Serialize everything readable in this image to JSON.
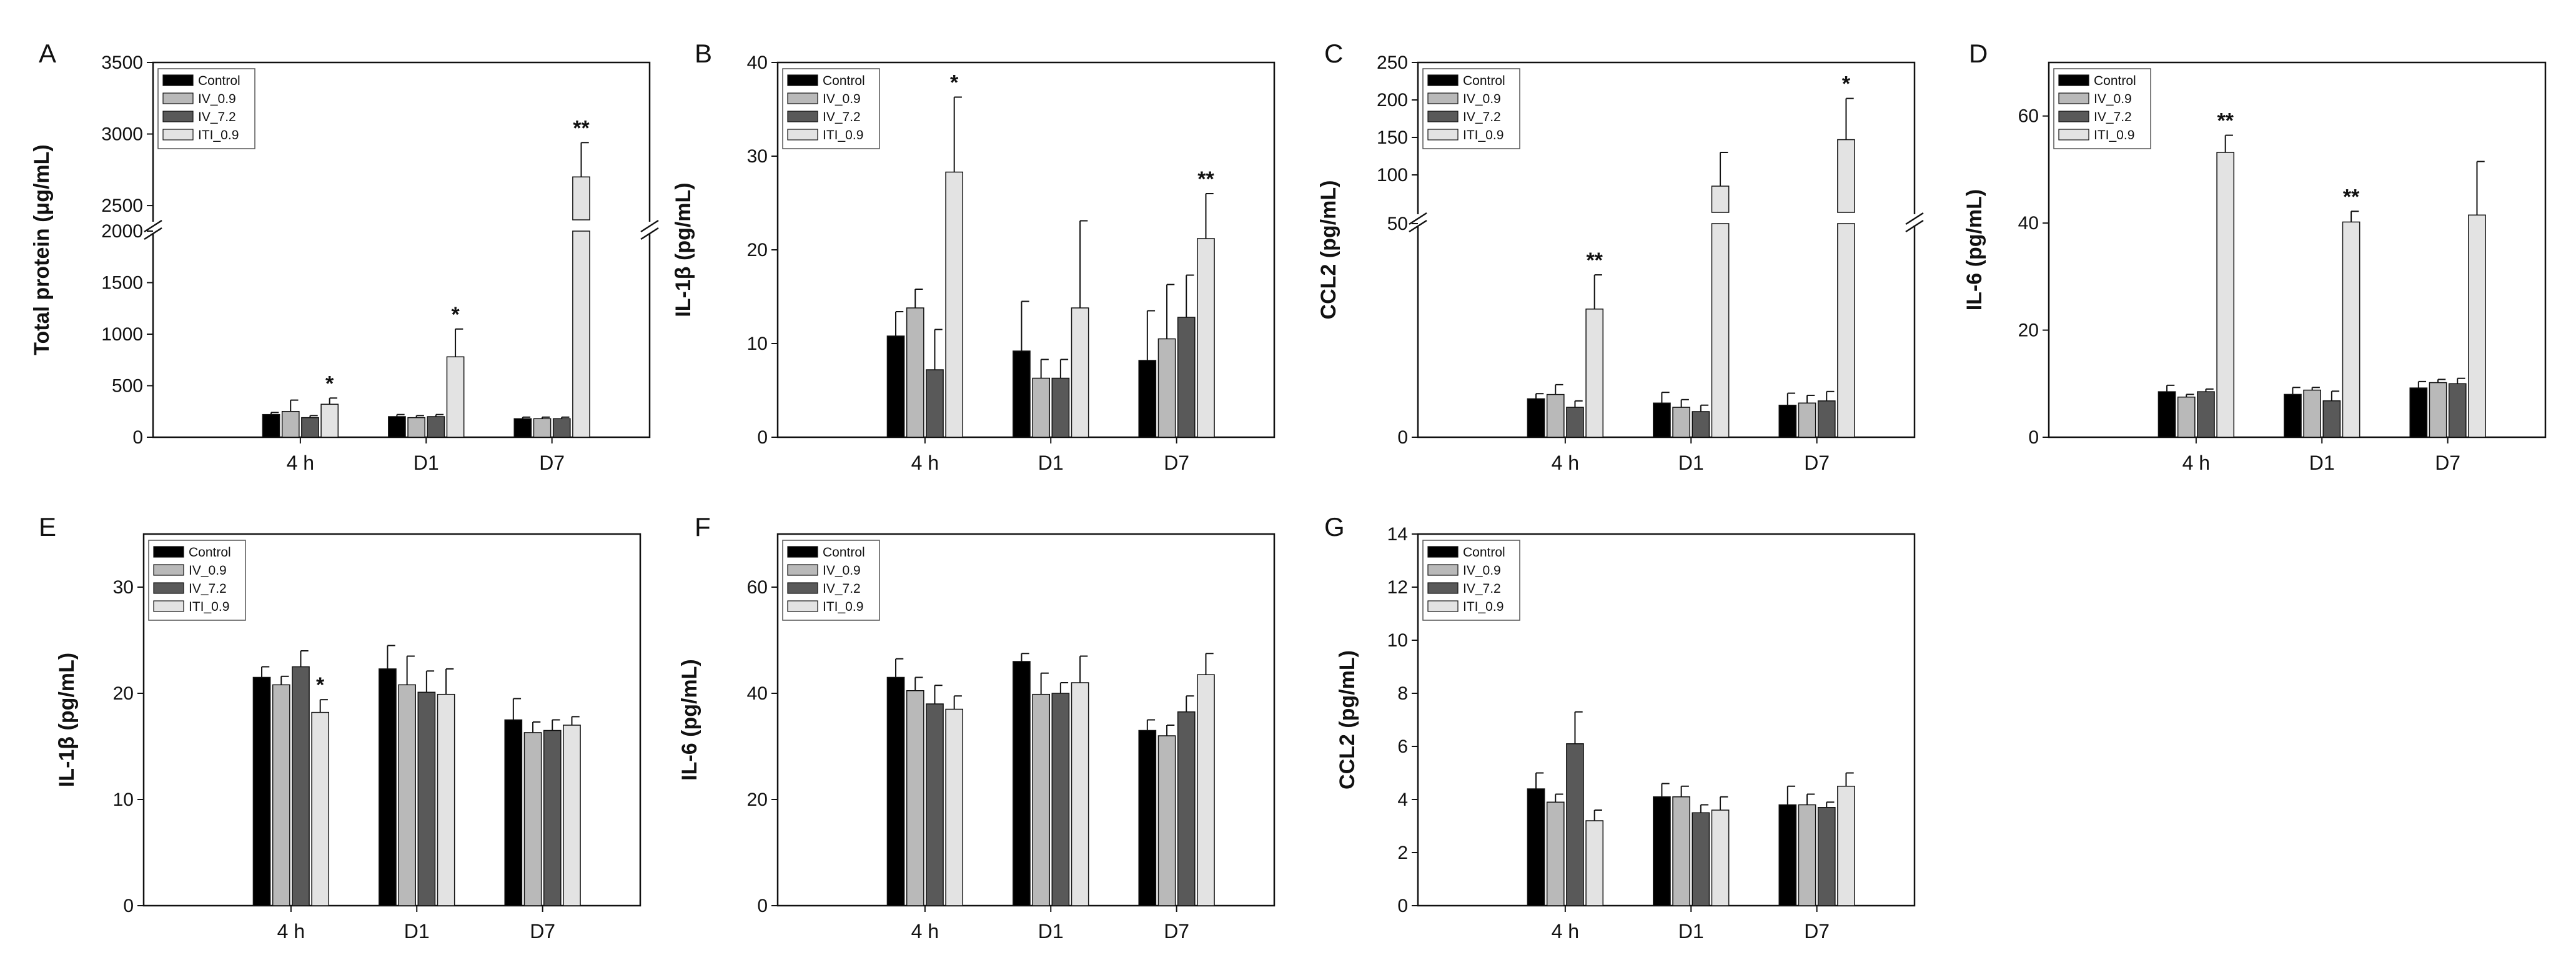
{
  "figure": {
    "legend": [
      {
        "name": "Control",
        "color": "#000000"
      },
      {
        "name": "IV_0.9",
        "color": "#b9b9b9"
      },
      {
        "name": "IV_7.2",
        "color": "#595959"
      },
      {
        "name": "ITI_0.9",
        "color": "#e3e3e3"
      }
    ]
  },
  "chart_data": [
    {
      "panel": "A",
      "type": "bar",
      "ylabel": "Total protein (μg/mL)",
      "xlabel": "",
      "categories": [
        "4 h",
        "D1",
        "D7"
      ],
      "axis_break": {
        "lower": [
          0,
          2000
        ],
        "upper": [
          2400,
          3500
        ]
      },
      "yticks": [
        0,
        500,
        1000,
        1500,
        2000,
        2500,
        3000,
        3500
      ],
      "series": [
        {
          "name": "Control",
          "values": [
            220,
            200,
            180
          ],
          "errors": [
            20,
            20,
            15
          ]
        },
        {
          "name": "IV_0.9",
          "values": [
            250,
            190,
            180
          ],
          "errors": [
            110,
            20,
            15
          ]
        },
        {
          "name": "IV_7.2",
          "values": [
            190,
            200,
            180
          ],
          "errors": [
            20,
            20,
            15
          ]
        },
        {
          "name": "ITI_0.9",
          "values": [
            320,
            780,
            2700
          ],
          "errors": [
            60,
            270,
            240
          ]
        }
      ],
      "significance": [
        {
          "category": "4 h",
          "series": "ITI_0.9",
          "label": "*"
        },
        {
          "category": "D1",
          "series": "ITI_0.9",
          "label": "*"
        },
        {
          "category": "D7",
          "series": "ITI_0.9",
          "label": "**"
        }
      ]
    },
    {
      "panel": "B",
      "type": "bar",
      "ylabel": "IL-1β (pg/mL)",
      "xlabel": "",
      "categories": [
        "4 h",
        "D1",
        "D7"
      ],
      "ylim": [
        0,
        40
      ],
      "yticks": [
        0,
        10,
        20,
        30,
        40
      ],
      "series": [
        {
          "name": "Control",
          "values": [
            10.8,
            9.2,
            8.2
          ],
          "errors": [
            2.6,
            5.3,
            5.3
          ]
        },
        {
          "name": "IV_0.9",
          "values": [
            13.8,
            6.3,
            10.5
          ],
          "errors": [
            2.0,
            2.0,
            5.8
          ]
        },
        {
          "name": "IV_7.2",
          "values": [
            7.2,
            6.3,
            12.8
          ],
          "errors": [
            4.3,
            2.0,
            4.5
          ]
        },
        {
          "name": "ITI_0.9",
          "values": [
            28.3,
            13.8,
            21.2
          ],
          "errors": [
            8.0,
            9.3,
            4.8
          ]
        }
      ],
      "significance": [
        {
          "category": "4 h",
          "series": "ITI_0.9",
          "label": "*"
        },
        {
          "category": "D7",
          "series": "ITI_0.9",
          "label": "**"
        }
      ]
    },
    {
      "panel": "C",
      "type": "bar",
      "ylabel": "CCL2 (pg/mL)",
      "xlabel": "",
      "categories": [
        "4 h",
        "D1",
        "D7"
      ],
      "axis_break": {
        "lower": [
          0,
          50
        ],
        "upper": [
          50,
          250
        ]
      },
      "yticks": [
        0,
        50,
        100,
        150,
        200,
        250
      ],
      "series": [
        {
          "name": "Control",
          "values": [
            9,
            8,
            7.5
          ],
          "errors": [
            1.2,
            2.5,
            2.8
          ]
        },
        {
          "name": "IV_0.9",
          "values": [
            10,
            7,
            8
          ],
          "errors": [
            2.3,
            1.8,
            1.8
          ]
        },
        {
          "name": "IV_7.2",
          "values": [
            7,
            6,
            8.5
          ],
          "errors": [
            1.5,
            1.5,
            2.2
          ]
        },
        {
          "name": "ITI_0.9",
          "values": [
            30,
            85,
            147
          ],
          "errors": [
            8,
            45,
            55
          ]
        }
      ],
      "significance": [
        {
          "category": "4 h",
          "series": "ITI_0.9",
          "label": "**"
        },
        {
          "category": "D7",
          "series": "ITI_0.9",
          "label": "*"
        }
      ]
    },
    {
      "panel": "D",
      "type": "bar",
      "ylabel": "IL-6 (pg/mL)",
      "xlabel": "",
      "categories": [
        "4 h",
        "D1",
        "D7"
      ],
      "ylim": [
        0,
        70
      ],
      "yticks": [
        0,
        20,
        40,
        60
      ],
      "series": [
        {
          "name": "Control",
          "values": [
            8.5,
            8.0,
            9.2
          ],
          "errors": [
            1.2,
            1.3,
            1.2
          ]
        },
        {
          "name": "IV_0.9",
          "values": [
            7.5,
            8.8,
            10.2
          ],
          "errors": [
            0.5,
            0.5,
            0.6
          ]
        },
        {
          "name": "IV_7.2",
          "values": [
            8.5,
            6.8,
            10.0
          ],
          "errors": [
            0.5,
            1.8,
            1.0
          ]
        },
        {
          "name": "ITI_0.9",
          "values": [
            53.2,
            40.2,
            41.5
          ],
          "errors": [
            3.2,
            2.0,
            10.0
          ]
        }
      ],
      "significance": [
        {
          "category": "4 h",
          "series": "ITI_0.9",
          "label": "**"
        },
        {
          "category": "D1",
          "series": "ITI_0.9",
          "label": "**"
        }
      ]
    },
    {
      "panel": "E",
      "type": "bar",
      "ylabel": "IL-1β (pg/mL)",
      "xlabel": "",
      "categories": [
        "4 h",
        "D1",
        "D7"
      ],
      "ylim": [
        0,
        35
      ],
      "yticks": [
        0,
        10,
        20,
        30
      ],
      "series": [
        {
          "name": "Control",
          "values": [
            21.5,
            22.3,
            17.5
          ],
          "errors": [
            1.0,
            2.2,
            2.0
          ]
        },
        {
          "name": "IV_0.9",
          "values": [
            20.8,
            20.8,
            16.3
          ],
          "errors": [
            0.8,
            2.7,
            1.0
          ]
        },
        {
          "name": "IV_7.2",
          "values": [
            22.5,
            20.1,
            16.5
          ],
          "errors": [
            1.5,
            2.0,
            1.0
          ]
        },
        {
          "name": "ITI_0.9",
          "values": [
            18.2,
            19.9,
            17.0
          ],
          "errors": [
            1.2,
            2.4,
            0.8
          ]
        }
      ],
      "significance": [
        {
          "category": "4 h",
          "series": "ITI_0.9",
          "label": "*"
        }
      ]
    },
    {
      "panel": "F",
      "type": "bar",
      "ylabel": "IL-6 (pg/mL)",
      "xlabel": "",
      "categories": [
        "4 h",
        "D1",
        "D7"
      ],
      "ylim": [
        0,
        70
      ],
      "yticks": [
        0,
        20,
        40,
        60
      ],
      "series": [
        {
          "name": "Control",
          "values": [
            43.0,
            46.0,
            33.0
          ],
          "errors": [
            3.5,
            1.5,
            2.0
          ]
        },
        {
          "name": "IV_0.9",
          "values": [
            40.5,
            39.8,
            32.0
          ],
          "errors": [
            2.5,
            4.0,
            2.0
          ]
        },
        {
          "name": "IV_7.2",
          "values": [
            38.0,
            40.0,
            36.5
          ],
          "errors": [
            3.5,
            2.0,
            3.0
          ]
        },
        {
          "name": "ITI_0.9",
          "values": [
            37.0,
            42.0,
            43.5
          ],
          "errors": [
            2.5,
            5.0,
            4.0
          ]
        }
      ],
      "significance": []
    },
    {
      "panel": "G",
      "type": "bar",
      "ylabel": "CCL2 (pg/mL)",
      "xlabel": "",
      "categories": [
        "4 h",
        "D1",
        "D7"
      ],
      "ylim": [
        0,
        14
      ],
      "yticks": [
        0,
        2,
        4,
        6,
        8,
        10,
        12,
        14
      ],
      "series": [
        {
          "name": "Control",
          "values": [
            4.4,
            4.1,
            3.8
          ],
          "errors": [
            0.6,
            0.5,
            0.7
          ]
        },
        {
          "name": "IV_0.9",
          "values": [
            3.9,
            4.1,
            3.8
          ],
          "errors": [
            0.3,
            0.4,
            0.4
          ]
        },
        {
          "name": "IV_7.2",
          "values": [
            6.1,
            3.5,
            3.7
          ],
          "errors": [
            1.2,
            0.3,
            0.2
          ]
        },
        {
          "name": "ITI_0.9",
          "values": [
            3.2,
            3.6,
            4.5
          ],
          "errors": [
            0.4,
            0.5,
            0.5
          ]
        }
      ],
      "significance": []
    }
  ]
}
